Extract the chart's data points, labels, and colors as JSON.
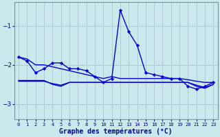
{
  "background_color": "#cce8ec",
  "grid_color": "#a8cdd4",
  "line_color": "#0000cc",
  "title": "Graphe des températures (°C)",
  "x_labels": [
    "0",
    "1",
    "2",
    "3",
    "4",
    "5",
    "6",
    "7",
    "8",
    "9",
    "10",
    "11",
    "12",
    "13",
    "14",
    "15",
    "16",
    "17",
    "18",
    "19",
    "20",
    "21",
    "22",
    "23"
  ],
  "xlim": [
    -0.5,
    23.5
  ],
  "ylim": [
    -3.4,
    -0.4
  ],
  "yticks": [
    -3,
    -2,
    -1
  ],
  "y_main": [
    -1.8,
    -1.9,
    -2.2,
    -2.1,
    -1.95,
    -1.95,
    -2.1,
    -2.1,
    -2.15,
    -2.3,
    -2.45,
    -2.35,
    -0.6,
    -1.15,
    -1.5,
    -2.2,
    -2.25,
    -2.3,
    -2.35,
    -2.35,
    -2.55,
    -2.62,
    -2.55,
    -2.45
  ],
  "y_ref_flat": [
    -2.4,
    -2.4,
    -2.4,
    -2.4,
    -2.5,
    -2.55,
    -2.45,
    -2.45,
    -2.45,
    -2.45,
    -2.45,
    -2.45,
    -2.45,
    -2.45,
    -2.45,
    -2.45,
    -2.45,
    -2.45,
    -2.45,
    -2.45,
    -2.45,
    -2.55,
    -2.6,
    -2.5
  ],
  "y_ref_grad": [
    -1.8,
    -1.85,
    -2.0,
    -2.0,
    -2.05,
    -2.1,
    -2.15,
    -2.2,
    -2.25,
    -2.3,
    -2.35,
    -2.3,
    -2.35,
    -2.35,
    -2.35,
    -2.35,
    -2.35,
    -2.35,
    -2.35,
    -2.35,
    -2.38,
    -2.42,
    -2.45,
    -2.45
  ],
  "y_ref_flat2": [
    -2.42,
    -2.42,
    -2.42,
    -2.42,
    -2.48,
    -2.52,
    -2.45,
    -2.45,
    -2.45,
    -2.45,
    -2.45,
    -2.45,
    -2.45,
    -2.45,
    -2.45,
    -2.45,
    -2.45,
    -2.45,
    -2.45,
    -2.45,
    -2.45,
    -2.52,
    -2.58,
    -2.5
  ]
}
